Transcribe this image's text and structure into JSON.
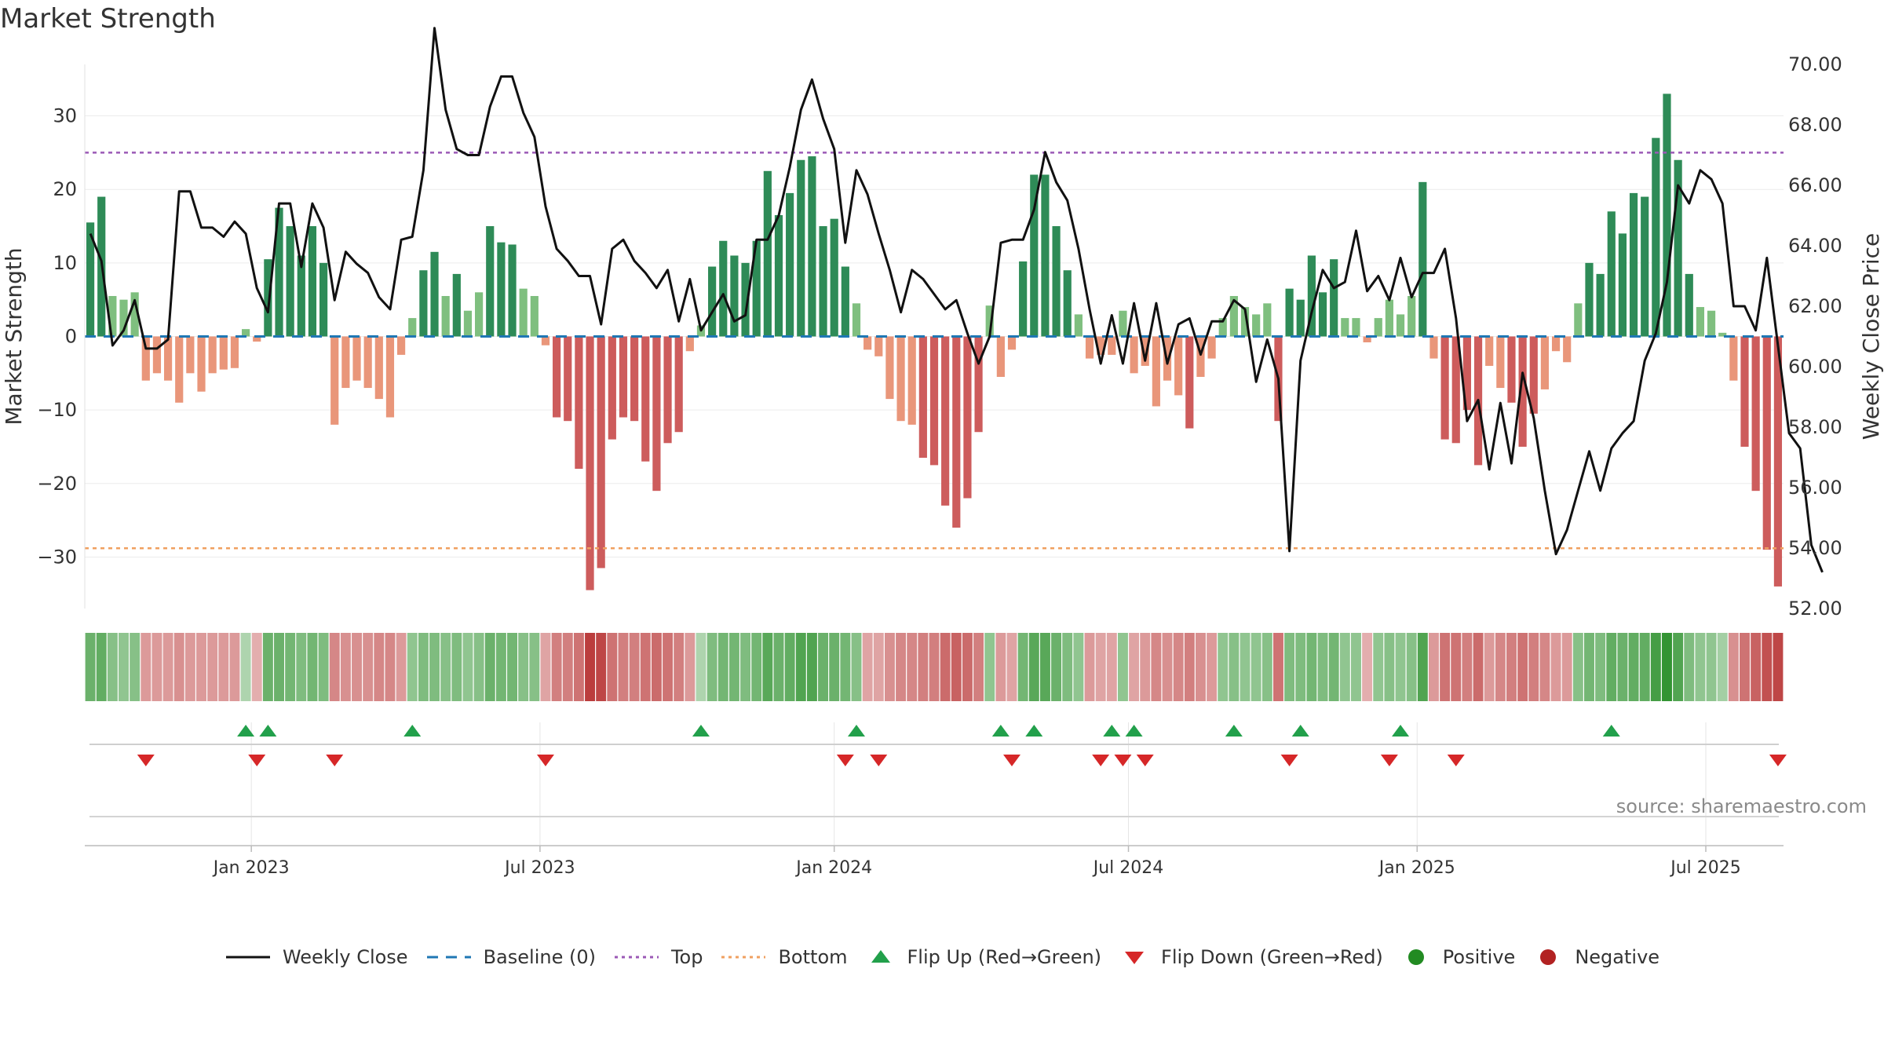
{
  "title": "Market Strength",
  "source": "source: sharemaestro.com",
  "chart_data": {
    "type": "bar",
    "title": "Market Strength",
    "ylabel_left": "Market Strength",
    "ylabel_right": "Weekly Close Price",
    "ylim_left": [
      -37,
      37
    ],
    "ylim_right": [
      52,
      70
    ],
    "yticks_left": [
      30,
      20,
      10,
      0,
      -10,
      -20,
      -30
    ],
    "ytick_labels_left": [
      "30",
      "20",
      "10",
      "0",
      "−10",
      "−20",
      "−30"
    ],
    "yticks_right": [
      "70.00",
      "68.00",
      "66.00",
      "64.00",
      "62.00",
      "60.00",
      "58.00",
      "56.00",
      "54.00",
      "52.00"
    ],
    "x_tick_weeks": [
      15,
      41,
      67.5,
      94,
      120,
      146
    ],
    "x_tick_labels": [
      "Jan 2023",
      "Jul 2023",
      "Jan 2024",
      "Jul 2024",
      "Jan 2025",
      "Jul 2025"
    ],
    "top_line": 25,
    "bottom_line": -28.8,
    "colors": {
      "pos_strong": "#2e8b57",
      "pos_light": "#7fbf7f",
      "neg_strong": "#cd5c5c",
      "neg_light": "#e9967a",
      "close_line": "#111111",
      "baseline": "#1f77b4",
      "top": "#9b59b6",
      "bottom": "#f0a060",
      "flip_up": "#22a04b",
      "flip_down": "#d62728",
      "positive": "#228b22",
      "negative": "#b22222"
    },
    "strength": [
      15.5,
      19,
      5.5,
      5,
      6,
      -6,
      -5,
      -6,
      -9,
      -5,
      -7.5,
      -5,
      -4.5,
      -4.3,
      1,
      -0.7,
      10.5,
      17.5,
      15,
      11,
      15,
      10,
      -12,
      -7,
      -6,
      -7,
      -8.5,
      -11,
      -2.5,
      2.5,
      9,
      11.5,
      5.5,
      8.5,
      3.5,
      6,
      15,
      12.8,
      12.5,
      6.5,
      5.5,
      -1.2,
      -11,
      -11.5,
      -18,
      -34.5,
      -31.5,
      -14,
      -11,
      -11.5,
      -17,
      -21,
      -14.5,
      -13,
      -2,
      1.5,
      9.5,
      13,
      11,
      10,
      13,
      22.5,
      16.5,
      19.5,
      24,
      24.5,
      15,
      16,
      9.5,
      4.5,
      -1.8,
      -2.7,
      -8.5,
      -11.5,
      -12,
      -16.5,
      -17.5,
      -23,
      -26,
      -22,
      -13,
      4.2,
      -5.5,
      -1.8,
      10.2,
      22,
      22,
      15,
      9,
      3,
      -3,
      -2.5,
      -2.5,
      3.5,
      -5,
      -4,
      -9.5,
      -6,
      -8,
      -12.5,
      -5.5,
      -3,
      2.5,
      5.5,
      4,
      3,
      4.5,
      -11.5,
      6.5,
      5,
      11,
      6,
      10.5,
      2.5,
      2.5,
      -0.8,
      2.5,
      5,
      3,
      5.5,
      21,
      -3,
      -14,
      -14.5,
      -10,
      -17.5,
      -4,
      -7,
      -9,
      -15,
      -10.5,
      -7.2,
      -2,
      -3.5,
      4.5,
      10,
      8.5,
      17,
      14,
      19.5,
      19,
      27,
      33,
      24,
      8.5,
      4,
      3.5,
      0.5,
      -6,
      -15,
      -21,
      -29,
      -34
    ],
    "intensity": [
      0.55,
      0.6,
      0.4,
      0.35,
      0.4,
      0.3,
      0.3,
      0.3,
      0.35,
      0.3,
      0.3,
      0.3,
      0.3,
      0.3,
      0.2,
      0.2,
      0.55,
      0.55,
      0.5,
      0.45,
      0.5,
      0.45,
      0.4,
      0.35,
      0.35,
      0.35,
      0.4,
      0.4,
      0.3,
      0.35,
      0.45,
      0.45,
      0.4,
      0.45,
      0.35,
      0.4,
      0.55,
      0.5,
      0.5,
      0.4,
      0.4,
      0.25,
      0.45,
      0.45,
      0.5,
      0.8,
      0.75,
      0.5,
      0.45,
      0.45,
      0.5,
      0.55,
      0.5,
      0.45,
      0.3,
      0.2,
      0.45,
      0.5,
      0.5,
      0.45,
      0.5,
      0.65,
      0.55,
      0.6,
      0.7,
      0.7,
      0.55,
      0.55,
      0.5,
      0.4,
      0.25,
      0.25,
      0.35,
      0.4,
      0.4,
      0.45,
      0.45,
      0.55,
      0.6,
      0.55,
      0.45,
      0.35,
      0.3,
      0.25,
      0.5,
      0.65,
      0.65,
      0.55,
      0.45,
      0.35,
      0.3,
      0.25,
      0.25,
      0.35,
      0.25,
      0.3,
      0.4,
      0.35,
      0.4,
      0.45,
      0.35,
      0.3,
      0.35,
      0.4,
      0.35,
      0.35,
      0.4,
      0.5,
      0.45,
      0.45,
      0.5,
      0.45,
      0.5,
      0.35,
      0.35,
      0.2,
      0.35,
      0.4,
      0.35,
      0.4,
      0.7,
      0.3,
      0.5,
      0.5,
      0.45,
      0.55,
      0.3,
      0.4,
      0.45,
      0.5,
      0.45,
      0.4,
      0.3,
      0.3,
      0.4,
      0.5,
      0.45,
      0.6,
      0.55,
      0.6,
      0.6,
      0.75,
      0.85,
      0.7,
      0.45,
      0.35,
      0.35,
      0.25,
      0.35,
      0.5,
      0.6,
      0.7,
      0.75
    ],
    "weekly_close": [
      64.4,
      63.5,
      60.7,
      61.2,
      62.2,
      60.6,
      60.6,
      60.9,
      65.8,
      65.8,
      64.6,
      64.6,
      64.3,
      64.8,
      64.4,
      62.6,
      61.8,
      65.4,
      65.4,
      63.3,
      65.4,
      64.6,
      62.2,
      63.8,
      63.4,
      63.1,
      62.3,
      61.9,
      64.2,
      64.3,
      66.5,
      71.2,
      68.5,
      67.2,
      67,
      67,
      68.6,
      69.6,
      69.6,
      68.4,
      67.6,
      65.3,
      63.9,
      63.5,
      63,
      63,
      61.4,
      63.9,
      64.2,
      63.5,
      63.1,
      62.6,
      63.2,
      61.5,
      62.9,
      61.2,
      61.8,
      62.4,
      61.5,
      61.7,
      64.2,
      64.2,
      65,
      66.6,
      68.5,
      69.5,
      68.2,
      67.2,
      64.1,
      66.5,
      65.7,
      64.4,
      63.2,
      61.8,
      63.2,
      62.9,
      62.4,
      61.9,
      62.2,
      61.1,
      60.1,
      61,
      64.1,
      64.2,
      64.2,
      65.2,
      67.1,
      66.1,
      65.5,
      63.9,
      61.9,
      60.1,
      61.7,
      60.1,
      62.1,
      60.2,
      62.1,
      60.1,
      61.4,
      61.6,
      60.4,
      61.5,
      61.5,
      62.2,
      61.9,
      59.5,
      60.9,
      59.6,
      53.9,
      60.2,
      61.8,
      63.2,
      62.6,
      62.8,
      64.5,
      62.5,
      63,
      62.2,
      63.6,
      62.3,
      63.1,
      63.1,
      63.9,
      61.6,
      58.2,
      58.9,
      56.6,
      58.8,
      56.8,
      59.8,
      58.3,
      55.9,
      53.8,
      54.6,
      55.9,
      57.2,
      55.9,
      57.3,
      57.8,
      58.2,
      60.2,
      61.1,
      62.8,
      66,
      65.4,
      66.5,
      66.2,
      65.4,
      62,
      62,
      61.2,
      63.6,
      60.7,
      57.8,
      57.3,
      54.1,
      53.2
    ],
    "flip_up": [
      14,
      16,
      29,
      55,
      69,
      82,
      85,
      92,
      94,
      103,
      109,
      118,
      137
    ],
    "flip_down": [
      5,
      15,
      22,
      41,
      68,
      71,
      83,
      91,
      93,
      95,
      108,
      117,
      123,
      152
    ]
  },
  "legend": {
    "weekly_close": "Weekly Close",
    "baseline": "Baseline (0)",
    "top": "Top",
    "bottom": "Bottom",
    "flip_up": "Flip Up (Red→Green)",
    "flip_down": "Flip Down (Green→Red)",
    "positive": "Positive",
    "negative": "Negative"
  }
}
